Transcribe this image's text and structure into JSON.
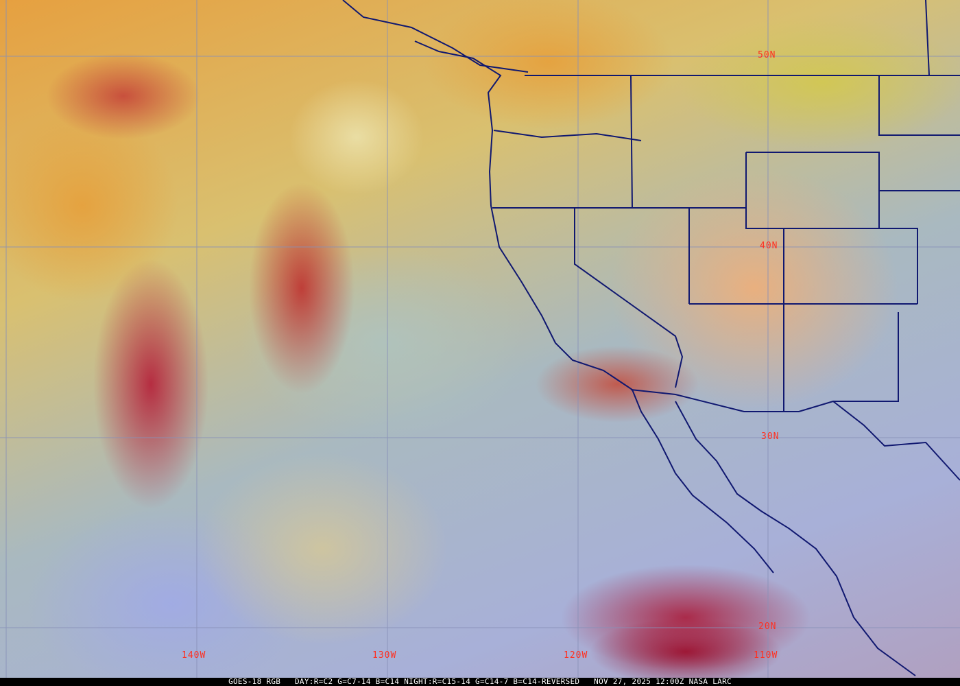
{
  "map": {
    "type": "satellite RGB composite",
    "colors": {
      "grid": "#8890b8",
      "borders": "#101870",
      "labels": "#ff3020"
    },
    "latitude_labels": [
      "50N",
      "40N",
      "30N",
      "20N"
    ],
    "longitude_labels": [
      "140W",
      "130W",
      "120W",
      "110W"
    ]
  },
  "caption": {
    "satellite": "GOES-18 RGB",
    "recipe": "DAY:R=C2 G=C7-14 B=C14 NIGHT:R=C15-14 G=C14-7 B=C14-REVERSED",
    "datetime": "NOV 27, 2025 12:00Z",
    "source": "NASA LARC"
  }
}
